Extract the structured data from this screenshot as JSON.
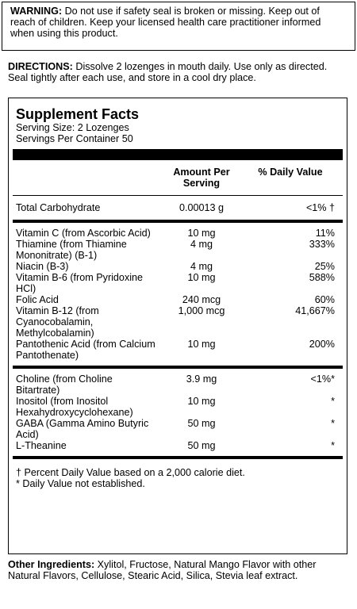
{
  "warning": {
    "label": "WARNING:",
    "text": "Do not use if safety seal is broken or missing. Keep out of reach of children. Keep your licensed health care practitioner informed when using this product."
  },
  "directions": {
    "label": "DIRECTIONS:",
    "text": "Dissolve 2 lozenges in mouth daily. Use only as directed.  Seal tightly after each use, and store in a cool dry place."
  },
  "facts": {
    "title": "Supplement Facts",
    "serving_size": "Serving Size: 2 Lozenges",
    "servings_per_container": "Servings Per Container 50",
    "headers": [
      "Amount Per Serving",
      "% Daily Value"
    ],
    "groups": [
      [
        [
          "Total Carbohydrate",
          "0.00013 g",
          "<1% †"
        ]
      ],
      [
        [
          "Vitamin C (from Ascorbic Acid)",
          "10 mg",
          "11%"
        ],
        [
          "Thiamine (from Thiamine Mononitrate) (B-1)",
          "4 mg",
          "333%"
        ],
        [
          "Niacin (B-3)",
          "4 mg",
          "25%"
        ],
        [
          "Vitamin B-6 (from Pyridoxine HCl)",
          "10 mg",
          "588%"
        ],
        [
          "Folic Acid",
          "240 mcg",
          "60%"
        ],
        [
          "Vitamin B-12 (from Cyanocobalamin, Methylcobalamin)",
          "1,000 mcg",
          "41,667%"
        ],
        [
          "Pantothenic Acid (from Calcium Pantothenate)",
          "10 mg",
          "200%"
        ]
      ],
      [
        [
          "Choline (from Choline Bitartrate)",
          "3.9 mg",
          "<1%*"
        ],
        [
          "Inositol (from Inositol Hexahydroxycyclohexane)",
          "10 mg",
          "*"
        ],
        [
          "GABA (Gamma Amino Butyric Acid)",
          "50 mg",
          "*"
        ],
        [
          "L-Theanine",
          "50 mg",
          "*"
        ]
      ]
    ],
    "footnotes": [
      "† Percent Daily Value based on a 2,000 calorie diet.",
      "* Daily Value not established."
    ]
  },
  "other_ingredients": {
    "label": "Other Ingredients:",
    "text": "Xylitol, Fructose, Natural Mango Flavor with other Natural Flavors, Cellulose, Stearic Acid, Silica, Stevia leaf extract."
  }
}
